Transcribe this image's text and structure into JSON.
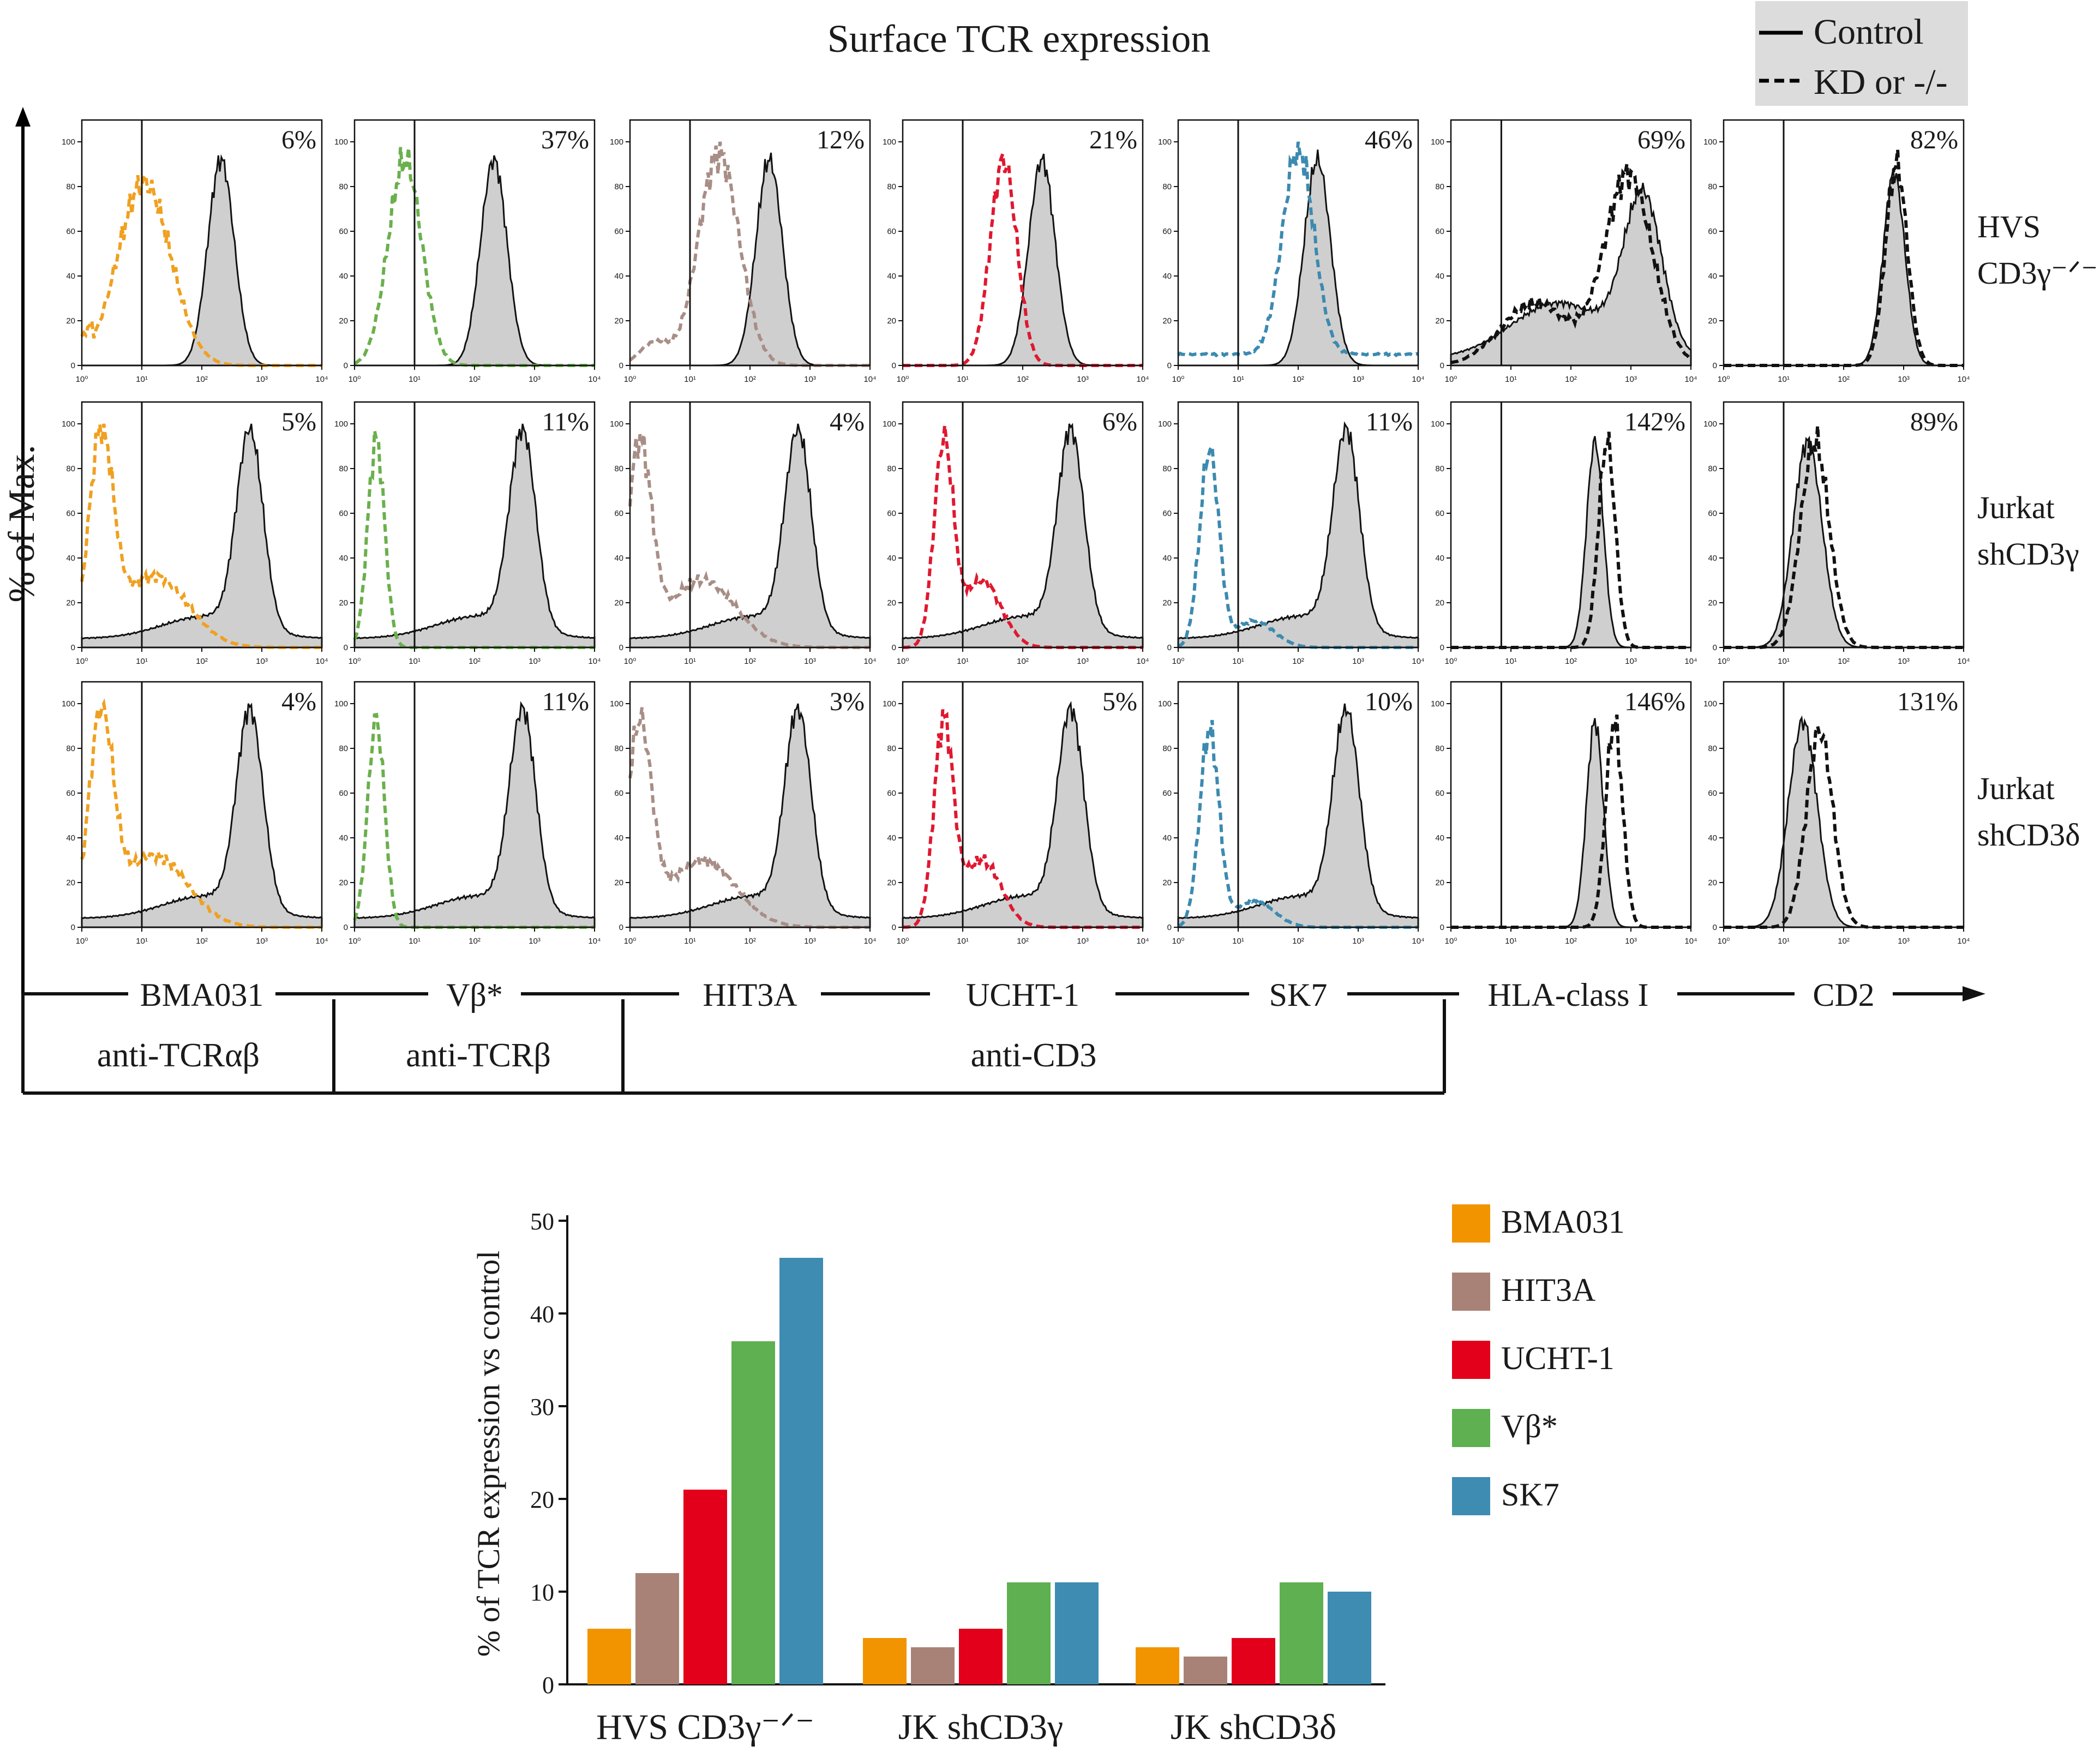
{
  "figure": {
    "title": "Surface TCR expression",
    "y_axis_label": "% of Max.",
    "legend": {
      "solid": "Control",
      "dashed": "KD or -/-"
    },
    "hist_y_ticks": [
      "0",
      "20",
      "40",
      "60",
      "80",
      "100"
    ],
    "hist_x_ticks": [
      "10⁰",
      "10¹",
      "10²",
      "10³",
      "10⁴"
    ],
    "row_labels": [
      [
        "HVS",
        "CD3γ⁻ᐟ⁻"
      ],
      [
        "Jurkat",
        "shCD3γ"
      ],
      [
        "Jurkat",
        "shCD3δ"
      ]
    ],
    "antibodies": [
      "BMA031",
      "Vβ*",
      "HIT3A",
      "UCHT-1",
      "SK7",
      "HLA-class I",
      "CD2"
    ],
    "groups": [
      "anti-TCRαβ",
      "anti-TCRβ",
      "anti-CD3"
    ],
    "panel_colors": [
      "#f0a020",
      "#6ab04c",
      "#a88e86",
      "#e01830",
      "#3c8ab0",
      "#111111",
      "#111111"
    ],
    "percentages": [
      [
        "6%",
        "37%",
        "12%",
        "21%",
        "46%",
        "69%",
        "82%"
      ],
      [
        "5%",
        "11%",
        "4%",
        "6%",
        "11%",
        "142%",
        "89%"
      ],
      [
        "4%",
        "11%",
        "3%",
        "5%",
        "10%",
        "146%",
        "131%"
      ]
    ]
  },
  "chart_data": {
    "type": "bar",
    "ylabel": "% of TCR expression vs control",
    "ylim": [
      0,
      50
    ],
    "yticks": [
      "0",
      "10",
      "20",
      "30",
      "40",
      "50"
    ],
    "categories": [
      "HVS CD3γ⁻ᐟ⁻",
      "JK shCD3γ",
      "JK shCD3δ"
    ],
    "series": [
      {
        "name": "BMA031",
        "color": "#f29400",
        "values": [
          6,
          5,
          4
        ]
      },
      {
        "name": "HIT3A",
        "color": "#a88276",
        "values": [
          12,
          4,
          3
        ]
      },
      {
        "name": "UCHT-1",
        "color": "#e2001a",
        "values": [
          21,
          6,
          5
        ]
      },
      {
        "name": "Vβ*",
        "color": "#5eb050",
        "values": [
          37,
          11,
          11
        ]
      },
      {
        "name": "SK7",
        "color": "#3e8cb2",
        "values": [
          46,
          11,
          10
        ]
      }
    ]
  }
}
